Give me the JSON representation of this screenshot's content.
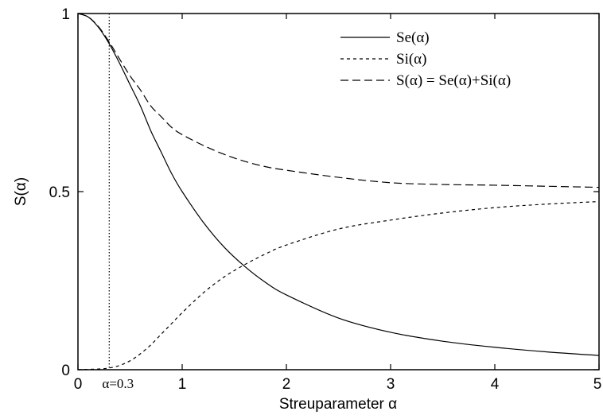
{
  "chart_data": {
    "type": "line",
    "title": "",
    "xlabel": "Streuparameter α",
    "ylabel": "S(α)",
    "xlim": [
      0,
      5
    ],
    "ylim": [
      0,
      1
    ],
    "x_ticks": [
      "0",
      "1",
      "2",
      "3",
      "4",
      "5"
    ],
    "y_ticks": [
      "0",
      "0.5",
      "1"
    ],
    "grid": false,
    "legend_position": "top-right",
    "annotation": {
      "label": "α=0.3",
      "x": 0.3
    },
    "series": [
      {
        "name": "S_e(α)",
        "legend_label": "Se(α)",
        "style": "solid",
        "x": [
          0,
          0.1,
          0.2,
          0.3,
          0.4,
          0.5,
          0.6,
          0.7,
          0.8,
          0.9,
          1.0,
          1.2,
          1.4,
          1.6,
          1.8,
          2.0,
          2.5,
          3.0,
          3.5,
          4.0,
          4.5,
          5.0
        ],
        "y": [
          1.0,
          0.99,
          0.96,
          0.915,
          0.86,
          0.8,
          0.74,
          0.67,
          0.61,
          0.55,
          0.5,
          0.415,
          0.345,
          0.29,
          0.245,
          0.21,
          0.145,
          0.105,
          0.08,
          0.063,
          0.05,
          0.04
        ]
      },
      {
        "name": "S_i(α)",
        "legend_label": "Si(α)",
        "style": "dashed-short",
        "x": [
          0,
          0.2,
          0.3,
          0.4,
          0.5,
          0.6,
          0.7,
          0.8,
          0.9,
          1.0,
          1.2,
          1.4,
          1.6,
          1.8,
          2.0,
          2.5,
          3.0,
          3.5,
          4.0,
          4.5,
          5.0
        ],
        "y": [
          0.0,
          0.002,
          0.005,
          0.012,
          0.025,
          0.045,
          0.07,
          0.1,
          0.13,
          0.16,
          0.215,
          0.26,
          0.295,
          0.325,
          0.35,
          0.395,
          0.42,
          0.44,
          0.455,
          0.465,
          0.472
        ]
      },
      {
        "name": "S(α) = S_e(α)+S_i(α)",
        "legend_label": "S(α) = Se(α)+Si(α)",
        "style": "dashed-long",
        "x": [
          0,
          0.1,
          0.2,
          0.3,
          0.4,
          0.5,
          0.6,
          0.7,
          0.8,
          0.9,
          1.0,
          1.2,
          1.4,
          1.6,
          1.8,
          2.0,
          2.5,
          3.0,
          3.5,
          4.0,
          4.5,
          5.0
        ],
        "y": [
          1.0,
          0.99,
          0.962,
          0.92,
          0.872,
          0.825,
          0.785,
          0.74,
          0.71,
          0.68,
          0.66,
          0.63,
          0.605,
          0.585,
          0.57,
          0.56,
          0.54,
          0.525,
          0.52,
          0.518,
          0.515,
          0.512
        ]
      }
    ]
  }
}
